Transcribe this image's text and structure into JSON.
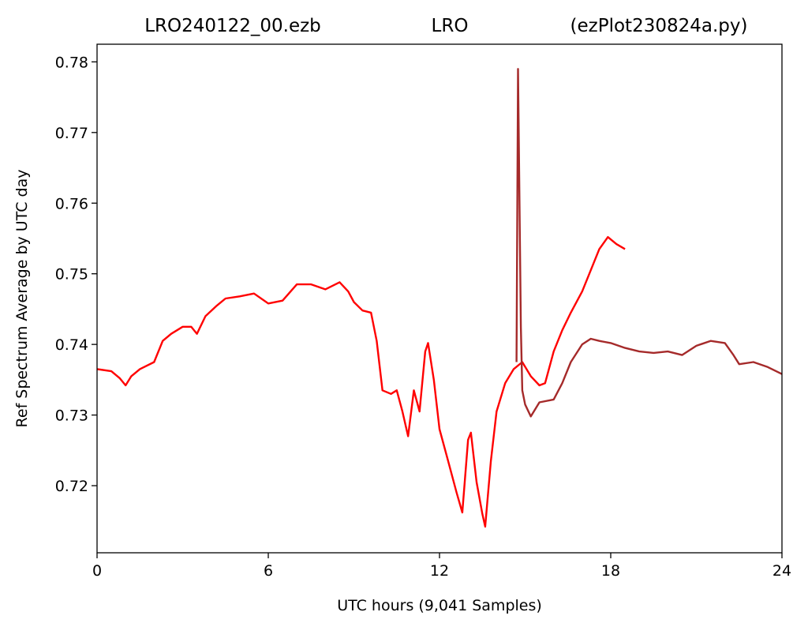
{
  "chart_data": {
    "type": "line",
    "title_left": "LRO240122_00.ezb",
    "title_center": "LRO",
    "title_right": "(ezPlot230824a.py)",
    "xlabel": "UTC hours  (9,041 Samples)",
    "ylabel": "Ref Spectrum Average by UTC day",
    "xlim": [
      0,
      24
    ],
    "ylim": [
      0.7105,
      0.7825
    ],
    "xticks": [
      0,
      6,
      12,
      18,
      24
    ],
    "xtick_labels": [
      "0",
      "6",
      "12",
      "18",
      "24"
    ],
    "yticks": [
      0.72,
      0.73,
      0.74,
      0.75,
      0.76,
      0.77,
      0.78
    ],
    "ytick_labels": [
      "0.72",
      "0.73",
      "0.74",
      "0.75",
      "0.76",
      "0.77",
      "0.78"
    ],
    "grid": false,
    "series": [
      {
        "color": "#ff0000",
        "x": [
          0,
          0.5,
          0.8,
          1.0,
          1.2,
          1.5,
          2.0,
          2.3,
          2.6,
          3.0,
          3.3,
          3.5,
          3.8,
          4.2,
          4.5,
          5.0,
          5.5,
          6.0,
          6.5,
          7.0,
          7.5,
          8.0,
          8.5,
          8.8,
          9.0,
          9.3,
          9.6,
          9.8,
          10.0,
          10.3,
          10.5,
          10.7,
          10.9,
          11.1,
          11.3,
          11.5,
          11.6,
          11.8,
          12.0,
          12.3,
          12.6,
          12.8,
          13.0,
          13.1,
          13.3,
          13.5,
          13.6,
          13.8,
          14.0,
          14.3,
          14.6,
          14.9,
          15.2,
          15.5,
          15.7,
          16.0,
          16.3,
          16.6,
          17.0,
          17.3,
          17.6,
          17.9,
          18.2,
          18.5
        ],
        "y": [
          0.7365,
          0.7362,
          0.7352,
          0.7342,
          0.7355,
          0.7365,
          0.7375,
          0.7405,
          0.7415,
          0.7425,
          0.7425,
          0.7415,
          0.744,
          0.7455,
          0.7465,
          0.7468,
          0.7472,
          0.7458,
          0.7462,
          0.7485,
          0.7485,
          0.7478,
          0.7488,
          0.7475,
          0.746,
          0.7448,
          0.7445,
          0.7405,
          0.7335,
          0.733,
          0.7335,
          0.7305,
          0.727,
          0.7335,
          0.7305,
          0.739,
          0.7402,
          0.735,
          0.728,
          0.7235,
          0.719,
          0.7162,
          0.7265,
          0.7275,
          0.7205,
          0.716,
          0.7142,
          0.7235,
          0.7305,
          0.7345,
          0.7365,
          0.7375,
          0.7355,
          0.7342,
          0.7345,
          0.739,
          0.742,
          0.7445,
          0.7475,
          0.7505,
          0.7535,
          0.7552,
          0.7542,
          0.7535
        ]
      },
      {
        "color": "#a52a2a",
        "x": [
          14.7,
          14.75,
          14.85,
          14.9,
          15.0,
          15.2,
          15.5,
          16.0,
          16.3,
          16.6,
          17.0,
          17.3,
          17.6,
          18.0,
          18.5,
          19.0,
          19.5,
          20.0,
          20.5,
          21.0,
          21.5,
          22.0,
          22.3,
          22.5,
          23.0,
          23.5,
          24.0
        ],
        "y": [
          0.7375,
          0.779,
          0.7425,
          0.7335,
          0.7315,
          0.7298,
          0.7318,
          0.7322,
          0.7345,
          0.7375,
          0.74,
          0.7408,
          0.7405,
          0.7402,
          0.7395,
          0.739,
          0.7388,
          0.739,
          0.7385,
          0.7398,
          0.7405,
          0.7402,
          0.7385,
          0.7372,
          0.7375,
          0.7368,
          0.7358
        ]
      }
    ]
  }
}
